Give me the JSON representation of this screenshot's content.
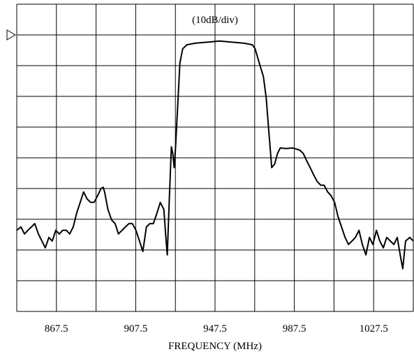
{
  "chart_data": {
    "type": "line",
    "annotation": "(10dB/div)",
    "x_label": "FREQUENCY (MHz)",
    "xlim": [
      847.5,
      1047.5
    ],
    "ylim": [
      -90,
      10
    ],
    "xticks": [
      {
        "value": 847.5,
        "label": null
      },
      867.5,
      {
        "value": 887.5,
        "label": null
      },
      907.5,
      {
        "value": 927.5,
        "label": null
      },
      947.5,
      {
        "value": 967.5,
        "label": null
      },
      987.5,
      {
        "value": 1007.5,
        "label": null
      },
      1027.5,
      {
        "value": 1047.5,
        "label": null
      }
    ],
    "yticks": [
      {
        "value": -90,
        "label": null
      },
      {
        "value": -80,
        "label": null
      },
      {
        "value": -70,
        "label": null
      },
      {
        "value": -60,
        "label": null
      },
      {
        "value": -50,
        "label": null
      },
      {
        "value": -40,
        "label": null
      },
      {
        "value": -30,
        "label": null
      },
      {
        "value": -20,
        "label": null
      },
      {
        "value": -10,
        "label": null
      },
      {
        "value": 0,
        "label": null
      },
      {
        "value": 10,
        "label": null
      }
    ],
    "grid": true,
    "ref_level": 0,
    "series": [
      {
        "name": null,
        "color": "#000000",
        "x": [
          847.5,
          849.6,
          851.4,
          853.1,
          854.9,
          856.6,
          858.4,
          860.2,
          861.9,
          863.7,
          865.4,
          867.2,
          868.9,
          870.7,
          872.5,
          874.2,
          876.0,
          877.7,
          879.5,
          881.2,
          883.0,
          884.8,
          886.5,
          888.3,
          890.0,
          891.1,
          891.8,
          893.5,
          895.3,
          897.1,
          898.8,
          900.6,
          902.3,
          904.1,
          905.8,
          907.6,
          909.4,
          911.1,
          912.9,
          914.6,
          916.4,
          918.2,
          919.9,
          921.7,
          922.7,
          923.4,
          924.5,
          925.5,
          926.2,
          926.9,
          927.6,
          928.7,
          929.8,
          931.2,
          933.3,
          937.5,
          944.5,
          949.8,
          955.1,
          962.1,
          966.3,
          967.7,
          969.8,
          971.9,
          973.3,
          974.7,
          976.1,
          977.6,
          979.0,
          980.4,
          983.2,
          986.7,
          990.2,
          992.0,
          993.7,
          995.5,
          997.2,
          999.0,
          1000.8,
          1002.5,
          1004.3,
          1006.0,
          1007.8,
          1009.5,
          1011.3,
          1013.1,
          1014.8,
          1016.6,
          1018.3,
          1020.1,
          1021.8,
          1023.6,
          1025.4,
          1027.1,
          1028.9,
          1030.6,
          1032.4,
          1034.1,
          1035.9,
          1037.7,
          1039.4,
          1041.2,
          1042.2,
          1043.6,
          1045.7,
          1047.5
        ],
        "values": [
          -63.6,
          -62.5,
          -64.8,
          -63.6,
          -62.5,
          -61.4,
          -64.8,
          -67.1,
          -69.3,
          -65.9,
          -67.1,
          -63.6,
          -64.8,
          -63.6,
          -63.6,
          -64.8,
          -62.5,
          -58.0,
          -54.5,
          -51.1,
          -53.4,
          -54.5,
          -54.5,
          -52.3,
          -50.0,
          -49.6,
          -51.1,
          -56.8,
          -60.2,
          -61.4,
          -64.8,
          -63.6,
          -62.5,
          -61.4,
          -61.4,
          -63.6,
          -67.1,
          -70.5,
          -62.5,
          -61.4,
          -61.4,
          -58.0,
          -54.5,
          -56.8,
          -65.9,
          -71.6,
          -52.3,
          -36.4,
          -38.6,
          -43.2,
          -36.4,
          -22.7,
          -9.1,
          -4.5,
          -3.2,
          -2.7,
          -2.3,
          -2.0,
          -2.3,
          -2.7,
          -3.2,
          -4.5,
          -9.1,
          -13.6,
          -20.5,
          -31.8,
          -43.2,
          -42.0,
          -38.6,
          -36.8,
          -37.0,
          -36.8,
          -37.5,
          -38.6,
          -40.9,
          -43.2,
          -45.5,
          -47.7,
          -48.9,
          -48.9,
          -51.1,
          -52.3,
          -54.5,
          -59.1,
          -62.5,
          -65.9,
          -68.2,
          -67.1,
          -65.9,
          -63.6,
          -68.2,
          -71.6,
          -65.9,
          -68.2,
          -63.6,
          -67.1,
          -69.3,
          -65.9,
          -67.1,
          -68.2,
          -65.9,
          -72.7,
          -76.1,
          -67.1,
          -65.9,
          -67.1
        ]
      }
    ]
  }
}
